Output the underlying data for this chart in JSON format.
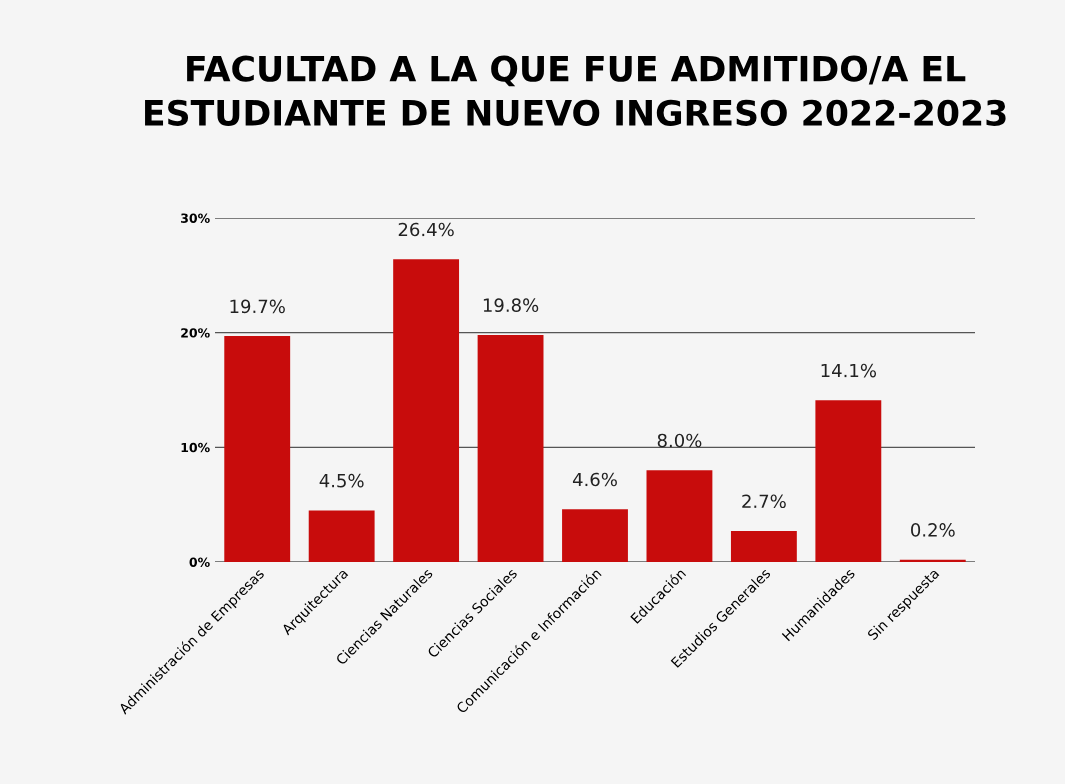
{
  "chart_data": {
    "type": "bar",
    "title": "FACULTAD A LA QUE FUE ADMITIDO/A EL ESTUDIANTE DE NUEVO INGRESO 2022-2023",
    "categories": [
      "Administración de Empresas",
      "Arquitectura",
      "Ciencias Naturales",
      "Ciencias Sociales",
      "Comunicación e Información",
      "Educación",
      "Estudios Generales",
      "Humanidades",
      "Sin respuesta"
    ],
    "values": [
      19.7,
      4.5,
      26.4,
      19.8,
      4.6,
      8.0,
      2.7,
      14.1,
      0.2
    ],
    "value_labels": [
      "19.7%",
      "4.5%",
      "26.4%",
      "19.8%",
      "4.6%",
      "8.0%",
      "2.7%",
      "14.1%",
      "0.2%"
    ],
    "color": "#c80c0c",
    "ylim": [
      0,
      30
    ],
    "yticks": [
      {
        "value": 0,
        "label": "0%"
      },
      {
        "value": 10,
        "label": "10%"
      },
      {
        "value": 20,
        "label": "20%"
      },
      {
        "value": 30,
        "label": "30%"
      }
    ],
    "grid": "y"
  }
}
